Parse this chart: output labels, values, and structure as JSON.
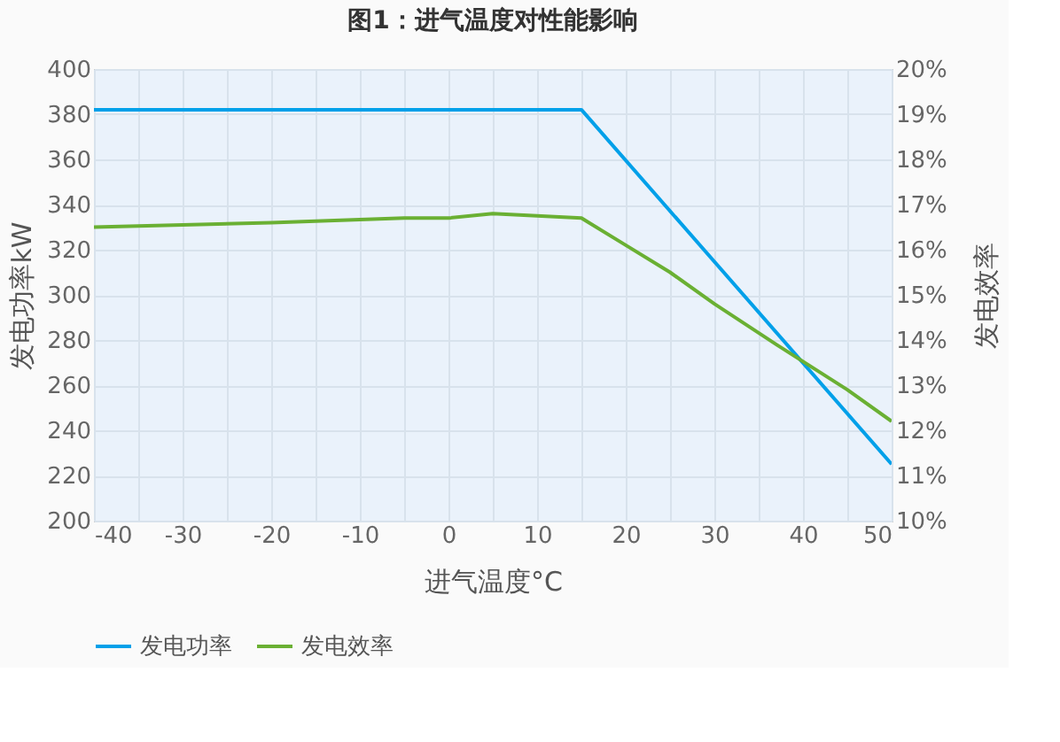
{
  "chart_data": {
    "type": "line",
    "title": "图1：进气温度对性能影响",
    "xlabel": "进气温度°C",
    "ylabel": "发电功率kW",
    "y2label": "发电效率",
    "xlim": [
      -40,
      50
    ],
    "xticks": [
      -40,
      {
        "value": -35,
        "label": null
      },
      -30,
      {
        "value": -25,
        "label": null
      },
      -20,
      {
        "value": -15,
        "label": null
      },
      -10,
      {
        "value": -5,
        "label": null
      },
      0,
      {
        "value": 5,
        "label": null
      },
      10,
      {
        "value": 15,
        "label": null
      },
      20,
      {
        "value": 25,
        "label": null
      },
      30,
      {
        "value": 35,
        "label": null
      },
      40,
      {
        "value": 45,
        "label": null
      },
      50
    ],
    "ylim": [
      200,
      400
    ],
    "yticks": [
      200,
      220,
      240,
      260,
      280,
      300,
      320,
      340,
      360,
      380,
      400
    ],
    "y2lim": [
      10,
      20
    ],
    "y2ticks": [
      {
        "value": 10,
        "label": "10%"
      },
      {
        "value": 11,
        "label": "11%"
      },
      {
        "value": 12,
        "label": "12%"
      },
      {
        "value": 13,
        "label": "13%"
      },
      {
        "value": 14,
        "label": "14%"
      },
      {
        "value": 15,
        "label": "15%"
      },
      {
        "value": 16,
        "label": "16%"
      },
      {
        "value": 17,
        "label": "17%"
      },
      {
        "value": 18,
        "label": "18%"
      },
      {
        "value": 19,
        "label": "19%"
      },
      {
        "value": 20,
        "label": "20%"
      }
    ],
    "grid": true,
    "legend": "bottom",
    "line_style": "solid",
    "marker": "none",
    "series": [
      {
        "name": "发电功率",
        "color": "#00a0e9",
        "x": [
          -40,
          15,
          50
        ],
        "values": [
          382,
          382,
          225
        ]
      },
      {
        "name": "发电效率",
        "color": "#6ab033",
        "axis": "y2",
        "x": [
          -40,
          -20,
          -5,
          0,
          5,
          10,
          15,
          20,
          25,
          30,
          37,
          45,
          50
        ],
        "values": [
          16.5,
          16.6,
          16.7,
          16.7,
          16.8,
          16.75,
          16.7,
          16.1,
          15.5,
          14.8,
          13.9,
          12.9,
          12.2
        ]
      }
    ]
  }
}
